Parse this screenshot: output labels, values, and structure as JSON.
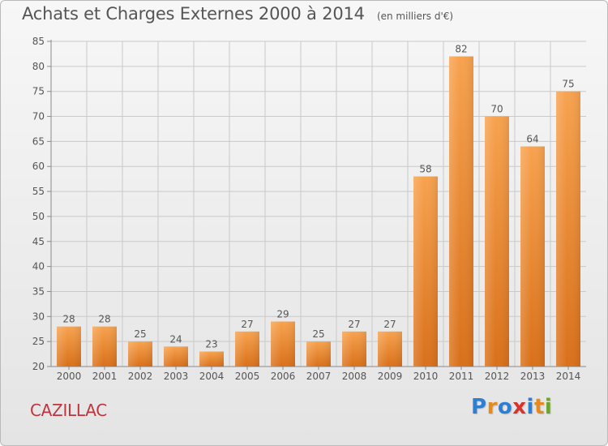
{
  "title": "Achats et Charges Externes 2000 à 2014",
  "unit": "(en milliers d'€)",
  "commune": "CAZILLAC",
  "logo": {
    "text": "Proxiti",
    "letters": [
      "P",
      "r",
      "o",
      "x",
      "i",
      "t",
      "i"
    ],
    "letter_colors": [
      "#2c7fd2",
      "#e58a1f",
      "#2c7fd2",
      "#d8332f",
      "#2c7fd2",
      "#e58a1f",
      "#6aa52c"
    ]
  },
  "colors": {
    "bar_top": "#f7a24e",
    "bar_bottom": "#d9701a",
    "grid": "#c9c9c9",
    "axis": "#8a8a8a",
    "text": "#555555",
    "commune": "#c0353d"
  },
  "chart_data": {
    "type": "bar",
    "categories": [
      "2000",
      "2001",
      "2002",
      "2003",
      "2004",
      "2005",
      "2006",
      "2007",
      "2008",
      "2009",
      "2010",
      "2011",
      "2012",
      "2013",
      "2014"
    ],
    "values": [
      28,
      28,
      25,
      24,
      23,
      27,
      29,
      25,
      27,
      27,
      58,
      82,
      70,
      64,
      75
    ],
    "ylim": [
      20,
      85
    ],
    "yticks": [
      20,
      25,
      30,
      35,
      40,
      45,
      50,
      55,
      60,
      65,
      70,
      75,
      80,
      85
    ],
    "grid": true,
    "legend": "none",
    "title": "Achats et Charges Externes 2000 à 2014",
    "xlabel": "",
    "ylabel": ""
  }
}
